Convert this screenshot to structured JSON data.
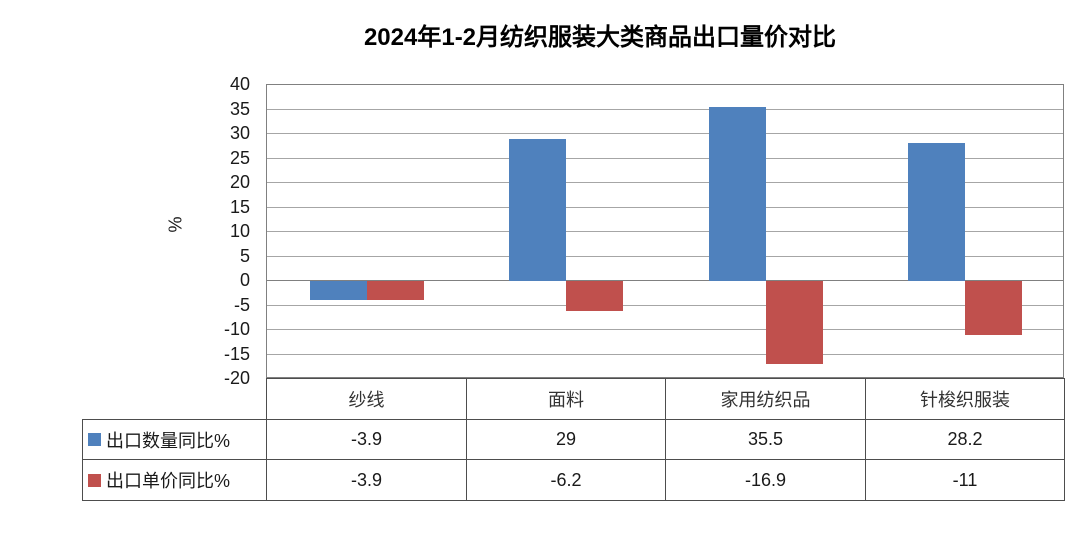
{
  "title": "2024年1-2月纺织服装大类商品出口量价对比",
  "chart_data": {
    "type": "bar",
    "title": "2024年1-2月纺织服装大类商品出口量价对比",
    "categories": [
      "纱线",
      "面料",
      "家用纺织品",
      "针梭织服装"
    ],
    "series": [
      {
        "name": "出口数量同比%",
        "color": "#4F81BD",
        "values": [
          -3.9,
          29,
          35.5,
          28.2
        ]
      },
      {
        "name": "出口单价同比%",
        "color": "#C0504D",
        "values": [
          -3.9,
          -6.2,
          -16.9,
          -11
        ]
      }
    ],
    "xlabel": "",
    "ylabel": "%",
    "ylim": [
      -20,
      40
    ],
    "yticks": [
      40,
      35,
      30,
      25,
      20,
      15,
      10,
      5,
      0,
      -5,
      -10,
      -15,
      -20
    ],
    "grid": true,
    "legend_position": "data-table-left"
  },
  "table": {
    "header_row": [
      "纱线",
      "面料",
      "家用纺织品",
      "针梭织服装"
    ],
    "rows": [
      {
        "label": "出口数量同比%",
        "swatch_color": "#4F81BD",
        "values": [
          "-3.9",
          "29",
          "35.5",
          "28.2"
        ]
      },
      {
        "label": "出口单价同比%",
        "swatch_color": "#C0504D",
        "values": [
          "-3.9",
          "-6.2",
          "-16.9",
          "-11"
        ]
      }
    ]
  },
  "colors": {
    "series_quantity": "#4F81BD",
    "series_price": "#C0504D",
    "gridline": "#A6A6A6",
    "axis": "#808080",
    "table_border": "#4D4D4D",
    "background": "#FFFFFF",
    "text": "#000000"
  }
}
